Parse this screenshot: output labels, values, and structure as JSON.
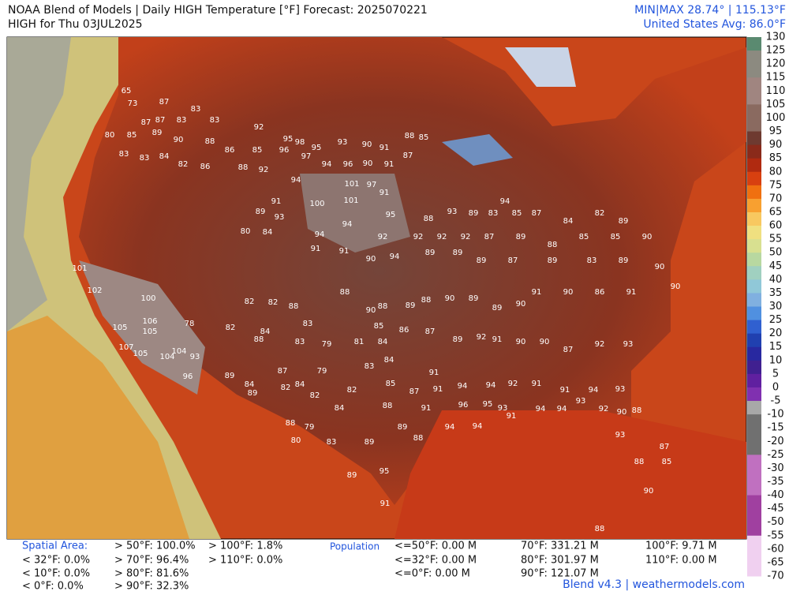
{
  "header": {
    "title": "NOAA Blend of Models | Daily HIGH Temperature [°F] Forecast: 2025070221",
    "subtitle": "HIGH for Thu 03JUL2025",
    "minmax": "MIN|MAX 28.74° | 115.13°F",
    "average": "United States Avg: 86.0°F"
  },
  "colorbar": {
    "ticks": [
      130,
      125,
      120,
      115,
      110,
      105,
      100,
      95,
      90,
      85,
      80,
      75,
      70,
      65,
      60,
      55,
      50,
      45,
      40,
      35,
      30,
      25,
      20,
      15,
      10,
      5,
      0,
      -5,
      -10,
      -15,
      -20,
      -25,
      -30,
      -35,
      -40,
      -45,
      -50,
      -55,
      -60,
      -65,
      -70
    ]
  },
  "map": {
    "stations": [
      65,
      73,
      87,
      87,
      87,
      83,
      83,
      83,
      92,
      95,
      98,
      95,
      93,
      90,
      91,
      88,
      85,
      80,
      85,
      89,
      90,
      88,
      86,
      85,
      96,
      97,
      94,
      96,
      90,
      91,
      87,
      83,
      83,
      84,
      82,
      86,
      88,
      92,
      94,
      101,
      97,
      91,
      100,
      101,
      89,
      91,
      93,
      80,
      84,
      94,
      95,
      88,
      93,
      89,
      83,
      94,
      85,
      87,
      84,
      82,
      89,
      94,
      92,
      92,
      92,
      92,
      87,
      89,
      88,
      85,
      85,
      90,
      91,
      91,
      90,
      94,
      89,
      89,
      89,
      87,
      89,
      83,
      89,
      90,
      101,
      102,
      100,
      105,
      106,
      105,
      107,
      105,
      104,
      104,
      93,
      96,
      78,
      82,
      82,
      82,
      88,
      84,
      88,
      83,
      83,
      79,
      81,
      84,
      79,
      83,
      84,
      88,
      90,
      88,
      89,
      88,
      90,
      89,
      89,
      90,
      91,
      90,
      86,
      91,
      90,
      85,
      86,
      87,
      89,
      92,
      91,
      90,
      90,
      87,
      92,
      93,
      89,
      84,
      89,
      87,
      84,
      82,
      82,
      82,
      84,
      85,
      87,
      91,
      91,
      94,
      94,
      92,
      91,
      91,
      94,
      93,
      88,
      91,
      96,
      95,
      93,
      94,
      94,
      93,
      92,
      90,
      88,
      88,
      79,
      80,
      83,
      89,
      89,
      88,
      94,
      94,
      91,
      93,
      87,
      88,
      85,
      89,
      95,
      91,
      90,
      88
    ]
  },
  "footer": {
    "spatial_area": {
      "label": "Spatial Area:",
      "items": [
        "< 32°F: 0.0%",
        "< 10°F: 0.0%",
        "< 0°F: 0.0%",
        "> 50°F: 100.0%",
        "> 70°F: 96.4%",
        "> 80°F: 81.6%",
        "> 90°F: 32.3%",
        "> 100°F: 1.8%",
        "> 110°F: 0.0%"
      ]
    },
    "population": {
      "label": "Population",
      "items": [
        "<=50°F: 0.00 M",
        "<=32°F: 0.00 M",
        "<=0°F: 0.00 M",
        "70°F: 331.21 M",
        "80°F: 301.97 M",
        "90°F: 121.07 M",
        "100°F: 9.71 M",
        "110°F: 0.00 M"
      ]
    },
    "credit": "Blend v4.3 | weathermodels.com"
  }
}
